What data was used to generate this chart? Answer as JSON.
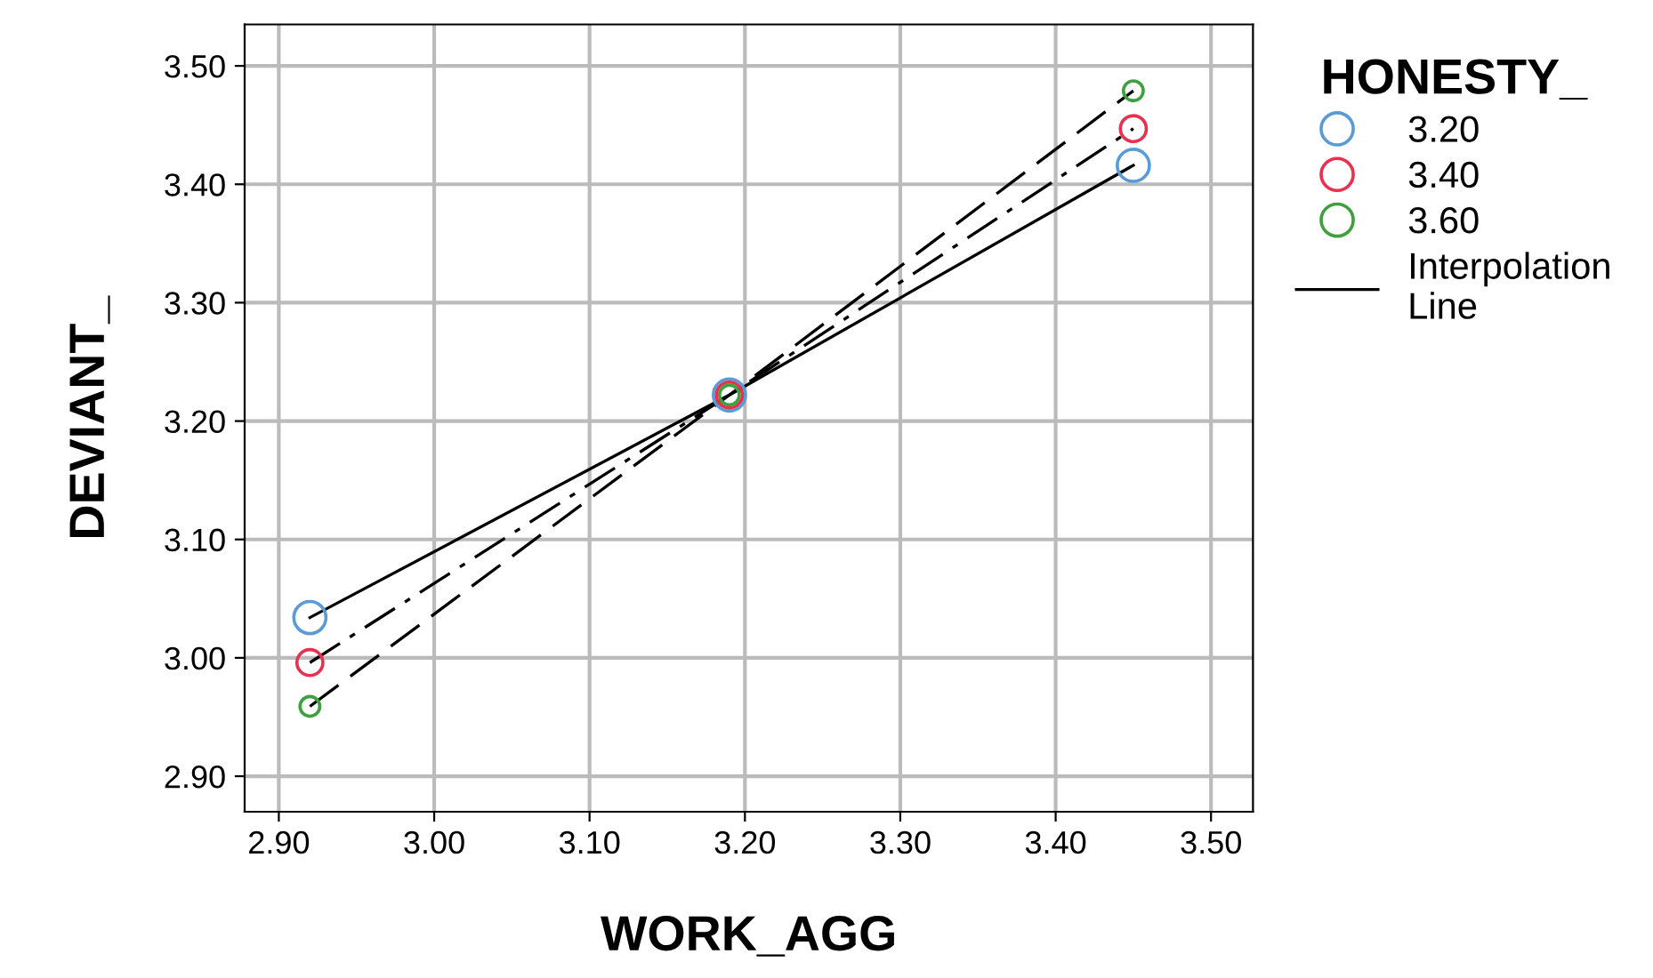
{
  "chart_data": {
    "type": "line",
    "xlabel": "WORK_AGG",
    "ylabel": "DEVIANT_",
    "legend_title": "HONESTY_",
    "legend": "right",
    "grid": true,
    "marker": "circle",
    "x": [
      2.92,
      3.19,
      3.45
    ],
    "series": [
      {
        "name": "3.20",
        "color": "#5b9bd5",
        "line_style": "solid",
        "values": [
          3.034,
          3.222,
          3.416
        ]
      },
      {
        "name": "3.40",
        "color": "#e8304f",
        "line_style": "dashdot",
        "values": [
          2.996,
          3.222,
          3.447
        ]
      },
      {
        "name": "3.60",
        "color": "#3fa03f",
        "line_style": "dashed",
        "values": [
          2.959,
          3.222,
          3.479
        ]
      }
    ],
    "annotations": [
      "Interpolation Line"
    ],
    "xlim": [
      2.878,
      3.527
    ],
    "ylim": [
      2.87,
      3.535
    ],
    "xticks": [
      {
        "value": 2.9,
        "label": "2.90"
      },
      {
        "value": 3.0,
        "label": "3.00"
      },
      {
        "value": 3.1,
        "label": "3.10"
      },
      {
        "value": 3.2,
        "label": "3.20"
      },
      {
        "value": 3.3,
        "label": "3.30"
      },
      {
        "value": 3.4,
        "label": "3.40"
      },
      {
        "value": 3.5,
        "label": "3.50"
      }
    ],
    "yticks": [
      {
        "value": 2.9,
        "label": "2.90"
      },
      {
        "value": 3.0,
        "label": "3.00"
      },
      {
        "value": 3.1,
        "label": "3.10"
      },
      {
        "value": 3.2,
        "label": "3.20"
      },
      {
        "value": 3.3,
        "label": "3.30"
      },
      {
        "value": 3.4,
        "label": "3.40"
      },
      {
        "value": 3.5,
        "label": "3.50"
      }
    ]
  }
}
